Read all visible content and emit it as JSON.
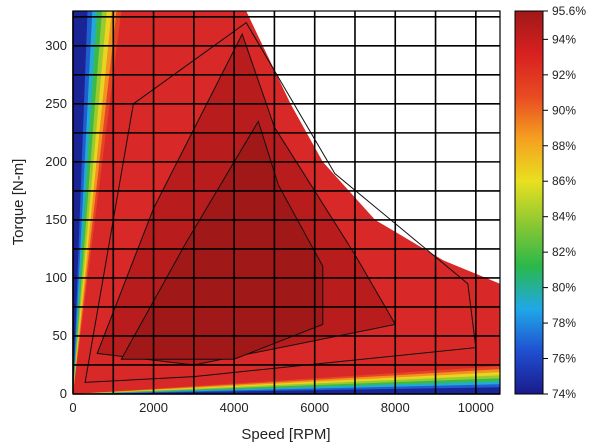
{
  "chart_data": {
    "type": "heatmap",
    "title": "",
    "xlabel": "Speed [RPM]",
    "ylabel": "Torque [N-m]",
    "xlim": [
      0,
      10600
    ],
    "ylim": [
      0,
      330
    ],
    "x_ticks": [
      0,
      2000,
      4000,
      6000,
      8000,
      10000
    ],
    "y_ticks": [
      0,
      50,
      100,
      150,
      200,
      250,
      300
    ],
    "grid": true,
    "colorbar": {
      "min": 74,
      "max": 95.6,
      "tick_values": [
        74,
        76,
        78,
        80,
        82,
        84,
        86,
        88,
        90,
        92,
        94,
        95.6
      ],
      "tick_labels": [
        "74%",
        "76%",
        "78%",
        "80%",
        "82%",
        "84%",
        "86%",
        "88%",
        "90%",
        "92%",
        "94%",
        "95.6%"
      ],
      "colormap": [
        "#1a1a8c",
        "#1f4fd0",
        "#20a8e8",
        "#2ab84a",
        "#8cc832",
        "#e8e020",
        "#f5a020",
        "#e84a22",
        "#d82020",
        "#a01818"
      ],
      "placement": "right"
    },
    "envelope": [
      [
        0,
        0
      ],
      [
        0,
        330
      ],
      [
        4300,
        330
      ],
      [
        5400,
        250
      ],
      [
        6200,
        200
      ],
      [
        7500,
        150
      ],
      [
        9200,
        115
      ],
      [
        10600,
        95
      ],
      [
        10600,
        0
      ]
    ],
    "contours": [
      {
        "level": 95,
        "points": [
          [
            1200,
            30
          ],
          [
            2800,
            130
          ],
          [
            4600,
            235
          ],
          [
            5100,
            180
          ],
          [
            6200,
            110
          ],
          [
            6200,
            60
          ],
          [
            4000,
            30
          ],
          [
            1200,
            30
          ]
        ]
      },
      {
        "level": 94,
        "points": [
          [
            600,
            35
          ],
          [
            2000,
            160
          ],
          [
            4200,
            310
          ],
          [
            5000,
            230
          ],
          [
            7000,
            120
          ],
          [
            8000,
            60
          ],
          [
            3000,
            25
          ],
          [
            600,
            35
          ]
        ]
      },
      {
        "level": 92,
        "points": [
          [
            300,
            10
          ],
          [
            1500,
            250
          ],
          [
            4300,
            320
          ],
          [
            6500,
            190
          ],
          [
            9800,
            95
          ],
          [
            10000,
            40
          ],
          [
            3000,
            15
          ],
          [
            300,
            10
          ]
        ]
      }
    ]
  }
}
